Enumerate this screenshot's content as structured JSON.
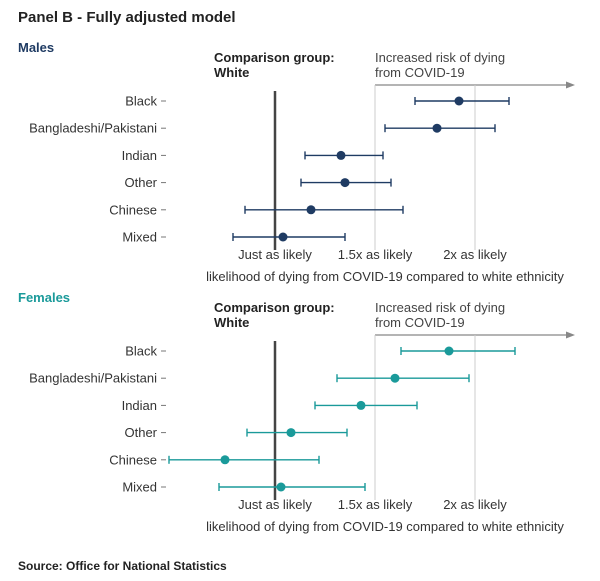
{
  "title": "Panel B - Fully adjusted model",
  "source": "Source: Office for National Statistics",
  "colors": {
    "males": "#1f3b63",
    "females": "#1a9a9a",
    "reference_line": "#444444",
    "grid": "#cccccc",
    "arrow": "#888888"
  },
  "chart_data": [
    {
      "type": "scatter",
      "panel": "Males",
      "title": "Males",
      "comparison_label": [
        "Comparison group:",
        "White"
      ],
      "risk_annotation": [
        "Increased risk of dying",
        "from COVID-19"
      ],
      "xlabel": "likelihood of dying from COVID-19 compared to white ethnicity",
      "x_ticks": [
        1,
        1.5,
        2
      ],
      "x_tick_labels": [
        "Just as likely",
        "1.5x as likely",
        "2x as likely"
      ],
      "xlim": [
        0.5,
        2.5
      ],
      "reference_value": 1,
      "grid": true,
      "categories": [
        "Black",
        "Bangladeshi/Pakistani",
        "Indian",
        "Other",
        "Chinese",
        "Mixed"
      ],
      "values": [
        1.92,
        1.81,
        1.33,
        1.35,
        1.18,
        1.04
      ],
      "lower": [
        1.7,
        1.55,
        1.15,
        1.13,
        0.85,
        0.79
      ],
      "upper": [
        2.17,
        2.1,
        1.54,
        1.58,
        1.64,
        1.35
      ]
    },
    {
      "type": "scatter",
      "panel": "Females",
      "title": "Females",
      "comparison_label": [
        "Comparison group:",
        "White"
      ],
      "risk_annotation": [
        "Increased risk of dying",
        "from COVID-19"
      ],
      "xlabel": "likelihood of dying from COVID-19 compared to white ethnicity",
      "x_ticks": [
        1,
        1.5,
        2
      ],
      "x_tick_labels": [
        "Just as likely",
        "1.5x as likely",
        "2x as likely"
      ],
      "xlim": [
        0.5,
        2.5
      ],
      "reference_value": 1,
      "grid": true,
      "categories": [
        "Black",
        "Bangladeshi/Pakistani",
        "Indian",
        "Other",
        "Chinese",
        "Mixed"
      ],
      "values": [
        1.87,
        1.6,
        1.43,
        1.08,
        0.75,
        1.03
      ],
      "lower": [
        1.63,
        1.31,
        1.2,
        0.86,
        0.47,
        0.72
      ],
      "upper": [
        2.2,
        1.97,
        1.71,
        1.36,
        1.22,
        1.45
      ]
    }
  ]
}
